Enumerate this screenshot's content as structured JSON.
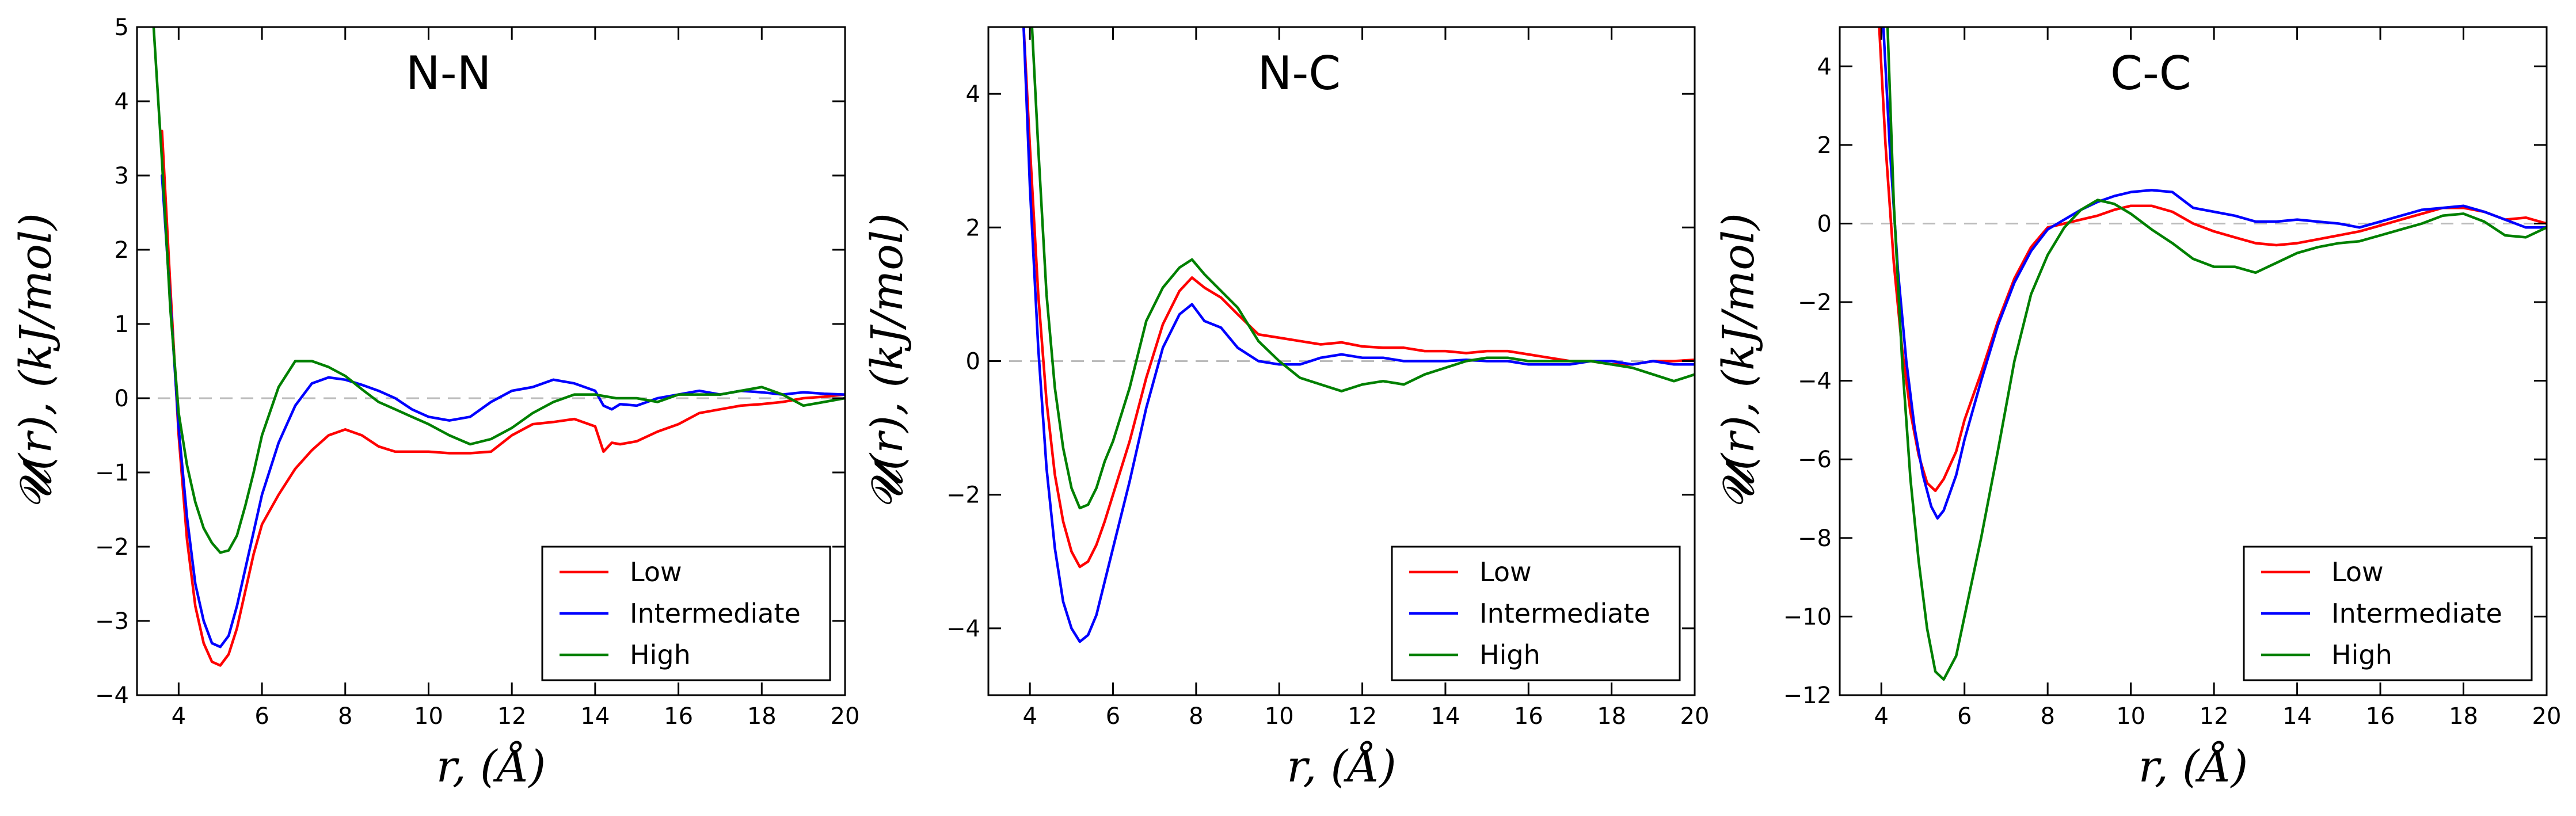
{
  "colors": {
    "Low": "#ff0000",
    "Intermediate": "#0000ff",
    "High": "#008000",
    "zero_line": "#bbbbbb"
  },
  "chart_data": [
    {
      "type": "line",
      "title": "N-N",
      "xlabel": "r, (Å)",
      "ylabel": "𝓤(r), (kJ/mol)",
      "xlim": [
        3,
        20
      ],
      "ylim": [
        -4,
        5
      ],
      "xticks": [
        4,
        6,
        8,
        10,
        12,
        14,
        16,
        18,
        20
      ],
      "yticks": [
        -4,
        -3,
        -2,
        -1,
        0,
        1,
        2,
        3,
        4,
        5
      ],
      "grid": false,
      "legend": "lower-right",
      "reference_line": 0,
      "series": [
        {
          "name": "Low",
          "x": [
            3.6,
            3.8,
            4.0,
            4.2,
            4.4,
            4.6,
            4.8,
            5.0,
            5.2,
            5.4,
            5.6,
            5.8,
            6.0,
            6.4,
            6.8,
            7.2,
            7.6,
            8.0,
            8.4,
            8.8,
            9.2,
            9.6,
            10.0,
            10.5,
            11.0,
            11.5,
            12.0,
            12.5,
            13.0,
            13.5,
            14.0,
            14.2,
            14.4,
            14.6,
            15.0,
            15.5,
            16.0,
            16.5,
            17.0,
            17.5,
            18.0,
            18.5,
            19.0,
            19.5,
            20.0
          ],
          "y": [
            3.6,
            1.5,
            -0.5,
            -1.9,
            -2.8,
            -3.3,
            -3.55,
            -3.6,
            -3.45,
            -3.1,
            -2.6,
            -2.1,
            -1.7,
            -1.3,
            -0.95,
            -0.7,
            -0.5,
            -0.42,
            -0.5,
            -0.65,
            -0.72,
            -0.72,
            -0.72,
            -0.74,
            -0.74,
            -0.72,
            -0.5,
            -0.35,
            -0.32,
            -0.28,
            -0.38,
            -0.72,
            -0.6,
            -0.62,
            -0.58,
            -0.45,
            -0.35,
            -0.2,
            -0.15,
            -0.1,
            -0.08,
            -0.05,
            0.0,
            0.02,
            0.05
          ]
        },
        {
          "name": "Intermediate",
          "x": [
            3.6,
            3.8,
            4.0,
            4.2,
            4.4,
            4.6,
            4.8,
            5.0,
            5.2,
            5.4,
            5.6,
            5.8,
            6.0,
            6.4,
            6.8,
            7.2,
            7.6,
            8.0,
            8.4,
            8.8,
            9.2,
            9.6,
            10.0,
            10.5,
            11.0,
            11.5,
            12.0,
            12.5,
            13.0,
            13.5,
            14.0,
            14.2,
            14.4,
            14.6,
            15.0,
            15.5,
            16.0,
            16.5,
            17.0,
            17.5,
            18.0,
            18.5,
            19.0,
            19.5,
            20.0
          ],
          "y": [
            3.0,
            1.3,
            -0.4,
            -1.6,
            -2.5,
            -3.0,
            -3.3,
            -3.35,
            -3.2,
            -2.8,
            -2.3,
            -1.8,
            -1.3,
            -0.6,
            -0.1,
            0.2,
            0.28,
            0.25,
            0.18,
            0.1,
            0.0,
            -0.15,
            -0.25,
            -0.3,
            -0.25,
            -0.05,
            0.1,
            0.15,
            0.25,
            0.2,
            0.1,
            -0.1,
            -0.15,
            -0.08,
            -0.1,
            0.0,
            0.05,
            0.1,
            0.05,
            0.1,
            0.08,
            0.05,
            0.08,
            0.06,
            0.05
          ]
        },
        {
          "name": "High",
          "x": [
            3.4,
            3.6,
            3.8,
            4.0,
            4.2,
            4.4,
            4.6,
            4.8,
            5.0,
            5.2,
            5.4,
            5.6,
            5.8,
            6.0,
            6.4,
            6.8,
            7.2,
            7.6,
            8.0,
            8.4,
            8.8,
            9.2,
            9.6,
            10.0,
            10.5,
            11.0,
            11.5,
            12.0,
            12.5,
            13.0,
            13.5,
            14.0,
            14.5,
            15.0,
            15.5,
            16.0,
            16.5,
            17.0,
            17.5,
            18.0,
            18.5,
            19.0,
            19.5,
            20.0
          ],
          "y": [
            5.0,
            3.2,
            1.2,
            -0.2,
            -0.9,
            -1.4,
            -1.75,
            -1.95,
            -2.08,
            -2.05,
            -1.85,
            -1.45,
            -1.0,
            -0.5,
            0.15,
            0.5,
            0.5,
            0.42,
            0.3,
            0.12,
            -0.05,
            -0.15,
            -0.25,
            -0.35,
            -0.5,
            -0.62,
            -0.55,
            -0.4,
            -0.2,
            -0.05,
            0.05,
            0.05,
            0.0,
            0.0,
            -0.05,
            0.05,
            0.05,
            0.05,
            0.1,
            0.15,
            0.05,
            -0.1,
            -0.05,
            0.0
          ]
        }
      ]
    },
    {
      "type": "line",
      "title": "N-C",
      "xlabel": "r, (Å)",
      "ylabel": "𝓤(r), (kJ/mol)",
      "xlim": [
        3,
        20
      ],
      "ylim": [
        -5,
        5
      ],
      "xticks": [
        4,
        6,
        8,
        10,
        12,
        14,
        16,
        18,
        20
      ],
      "yticks": [
        -4,
        -2,
        0,
        2,
        4
      ],
      "grid": false,
      "legend": "lower-right",
      "reference_line": 0,
      "series": [
        {
          "name": "Low",
          "x": [
            3.85,
            4.0,
            4.2,
            4.4,
            4.6,
            4.8,
            5.0,
            5.2,
            5.4,
            5.6,
            5.8,
            6.0,
            6.4,
            6.8,
            7.2,
            7.6,
            7.9,
            8.2,
            8.6,
            9.0,
            9.5,
            10.0,
            10.5,
            11.0,
            11.5,
            12.0,
            12.5,
            13.0,
            13.5,
            14.0,
            14.5,
            15.0,
            15.5,
            16.0,
            16.5,
            17.0,
            17.5,
            18.0,
            18.5,
            19.0,
            19.5,
            20.0
          ],
          "y": [
            5.0,
            3.2,
            1.0,
            -0.6,
            -1.7,
            -2.4,
            -2.85,
            -3.08,
            -3.0,
            -2.75,
            -2.4,
            -2.0,
            -1.2,
            -0.25,
            0.55,
            1.05,
            1.25,
            1.1,
            0.95,
            0.7,
            0.4,
            0.35,
            0.3,
            0.25,
            0.28,
            0.22,
            0.2,
            0.2,
            0.15,
            0.15,
            0.12,
            0.15,
            0.15,
            0.1,
            0.05,
            0.0,
            0.0,
            -0.05,
            -0.05,
            0.0,
            0.0,
            0.02
          ]
        },
        {
          "name": "Intermediate",
          "x": [
            3.85,
            4.0,
            4.2,
            4.4,
            4.6,
            4.8,
            5.0,
            5.2,
            5.4,
            5.6,
            5.8,
            6.0,
            6.4,
            6.8,
            7.2,
            7.6,
            7.9,
            8.2,
            8.6,
            9.0,
            9.5,
            10.0,
            10.5,
            11.0,
            11.5,
            12.0,
            12.5,
            13.0,
            13.5,
            14.0,
            14.5,
            15.0,
            15.5,
            16.0,
            16.5,
            17.0,
            17.5,
            18.0,
            18.5,
            19.0,
            19.5,
            20.0
          ],
          "y": [
            5.0,
            2.6,
            0.2,
            -1.6,
            -2.8,
            -3.6,
            -4.0,
            -4.2,
            -4.1,
            -3.8,
            -3.3,
            -2.8,
            -1.8,
            -0.7,
            0.2,
            0.7,
            0.85,
            0.6,
            0.5,
            0.2,
            0.0,
            -0.05,
            -0.05,
            0.05,
            0.1,
            0.05,
            0.05,
            0.0,
            0.0,
            0.0,
            0.02,
            0.0,
            0.0,
            -0.05,
            -0.05,
            -0.05,
            0.0,
            0.0,
            -0.05,
            0.0,
            -0.05,
            -0.05
          ]
        },
        {
          "name": "High",
          "x": [
            4.05,
            4.2,
            4.4,
            4.6,
            4.8,
            5.0,
            5.2,
            5.4,
            5.6,
            5.8,
            6.0,
            6.4,
            6.8,
            7.2,
            7.6,
            7.9,
            8.2,
            8.6,
            9.0,
            9.5,
            10.0,
            10.5,
            11.0,
            11.5,
            12.0,
            12.5,
            13.0,
            13.5,
            14.0,
            14.5,
            15.0,
            15.5,
            16.0,
            16.5,
            17.0,
            17.5,
            18.0,
            18.5,
            19.0,
            19.5,
            20.0
          ],
          "y": [
            5.0,
            3.2,
            1.0,
            -0.4,
            -1.3,
            -1.9,
            -2.2,
            -2.15,
            -1.9,
            -1.5,
            -1.2,
            -0.4,
            0.6,
            1.1,
            1.4,
            1.52,
            1.3,
            1.05,
            0.8,
            0.3,
            0.0,
            -0.25,
            -0.35,
            -0.45,
            -0.35,
            -0.3,
            -0.35,
            -0.2,
            -0.1,
            0.0,
            0.05,
            0.05,
            0.0,
            0.0,
            0.0,
            0.0,
            -0.05,
            -0.1,
            -0.2,
            -0.3,
            -0.2
          ]
        }
      ]
    },
    {
      "type": "line",
      "title": "C-C",
      "xlabel": "r, (Å)",
      "ylabel": "𝓤(r), (kJ/mol)",
      "xlim": [
        3,
        20
      ],
      "ylim": [
        -12,
        5
      ],
      "xticks": [
        4,
        6,
        8,
        10,
        12,
        14,
        16,
        18,
        20
      ],
      "yticks": [
        -12,
        -10,
        -8,
        -6,
        -4,
        -2,
        0,
        2,
        4
      ],
      "grid": false,
      "legend": "lower-right",
      "reference_line": 0,
      "series": [
        {
          "name": "Low",
          "x": [
            3.95,
            4.1,
            4.3,
            4.5,
            4.7,
            4.9,
            5.1,
            5.3,
            5.5,
            5.8,
            6.0,
            6.4,
            6.8,
            7.2,
            7.6,
            8.0,
            8.4,
            8.8,
            9.2,
            9.6,
            10.0,
            10.5,
            11.0,
            11.5,
            12.0,
            12.5,
            13.0,
            13.5,
            14.0,
            14.5,
            15.0,
            15.5,
            16.0,
            16.5,
            17.0,
            17.5,
            18.0,
            18.5,
            19.0,
            19.5,
            20.0
          ],
          "y": [
            5.0,
            2.0,
            -1.0,
            -3.2,
            -4.8,
            -5.9,
            -6.6,
            -6.8,
            -6.5,
            -5.8,
            -5.0,
            -3.8,
            -2.5,
            -1.4,
            -0.6,
            -0.1,
            0.0,
            0.1,
            0.2,
            0.35,
            0.45,
            0.45,
            0.3,
            0.0,
            -0.2,
            -0.35,
            -0.5,
            -0.55,
            -0.5,
            -0.4,
            -0.3,
            -0.2,
            -0.05,
            0.1,
            0.25,
            0.4,
            0.4,
            0.3,
            0.1,
            0.15,
            0.0
          ]
        },
        {
          "name": "Intermediate",
          "x": [
            4.05,
            4.2,
            4.4,
            4.6,
            4.8,
            5.0,
            5.2,
            5.35,
            5.5,
            5.8,
            6.0,
            6.4,
            6.8,
            7.2,
            7.6,
            8.0,
            8.4,
            8.8,
            9.2,
            9.6,
            10.0,
            10.5,
            11.0,
            11.5,
            12.0,
            12.5,
            13.0,
            13.5,
            14.0,
            14.5,
            15.0,
            15.5,
            16.0,
            16.5,
            17.0,
            17.5,
            18.0,
            18.5,
            19.0,
            19.5,
            20.0
          ],
          "y": [
            5.0,
            2.0,
            -1.2,
            -3.5,
            -5.2,
            -6.4,
            -7.2,
            -7.5,
            -7.3,
            -6.4,
            -5.5,
            -4.0,
            -2.6,
            -1.5,
            -0.7,
            -0.15,
            0.1,
            0.35,
            0.55,
            0.7,
            0.8,
            0.85,
            0.8,
            0.4,
            0.3,
            0.2,
            0.05,
            0.05,
            0.1,
            0.05,
            0.0,
            -0.1,
            0.05,
            0.2,
            0.35,
            0.4,
            0.45,
            0.3,
            0.1,
            -0.1,
            -0.1
          ]
        },
        {
          "name": "High",
          "x": [
            4.15,
            4.3,
            4.5,
            4.7,
            4.9,
            5.1,
            5.3,
            5.5,
            5.8,
            6.0,
            6.4,
            6.8,
            7.2,
            7.6,
            8.0,
            8.4,
            8.8,
            9.2,
            9.6,
            10.0,
            10.5,
            11.0,
            11.5,
            12.0,
            12.5,
            13.0,
            13.5,
            14.0,
            14.5,
            15.0,
            15.5,
            16.0,
            16.5,
            17.0,
            17.5,
            18.0,
            18.5,
            19.0,
            19.5,
            20.0
          ],
          "y": [
            5.0,
            0.5,
            -3.5,
            -6.5,
            -8.6,
            -10.3,
            -11.4,
            -11.6,
            -11.0,
            -10.0,
            -8.0,
            -5.8,
            -3.5,
            -1.8,
            -0.8,
            -0.1,
            0.35,
            0.6,
            0.5,
            0.25,
            -0.15,
            -0.5,
            -0.9,
            -1.1,
            -1.1,
            -1.25,
            -1.0,
            -0.75,
            -0.6,
            -0.5,
            -0.45,
            -0.3,
            -0.15,
            0.0,
            0.2,
            0.25,
            0.05,
            -0.3,
            -0.35,
            -0.1
          ]
        }
      ]
    }
  ]
}
